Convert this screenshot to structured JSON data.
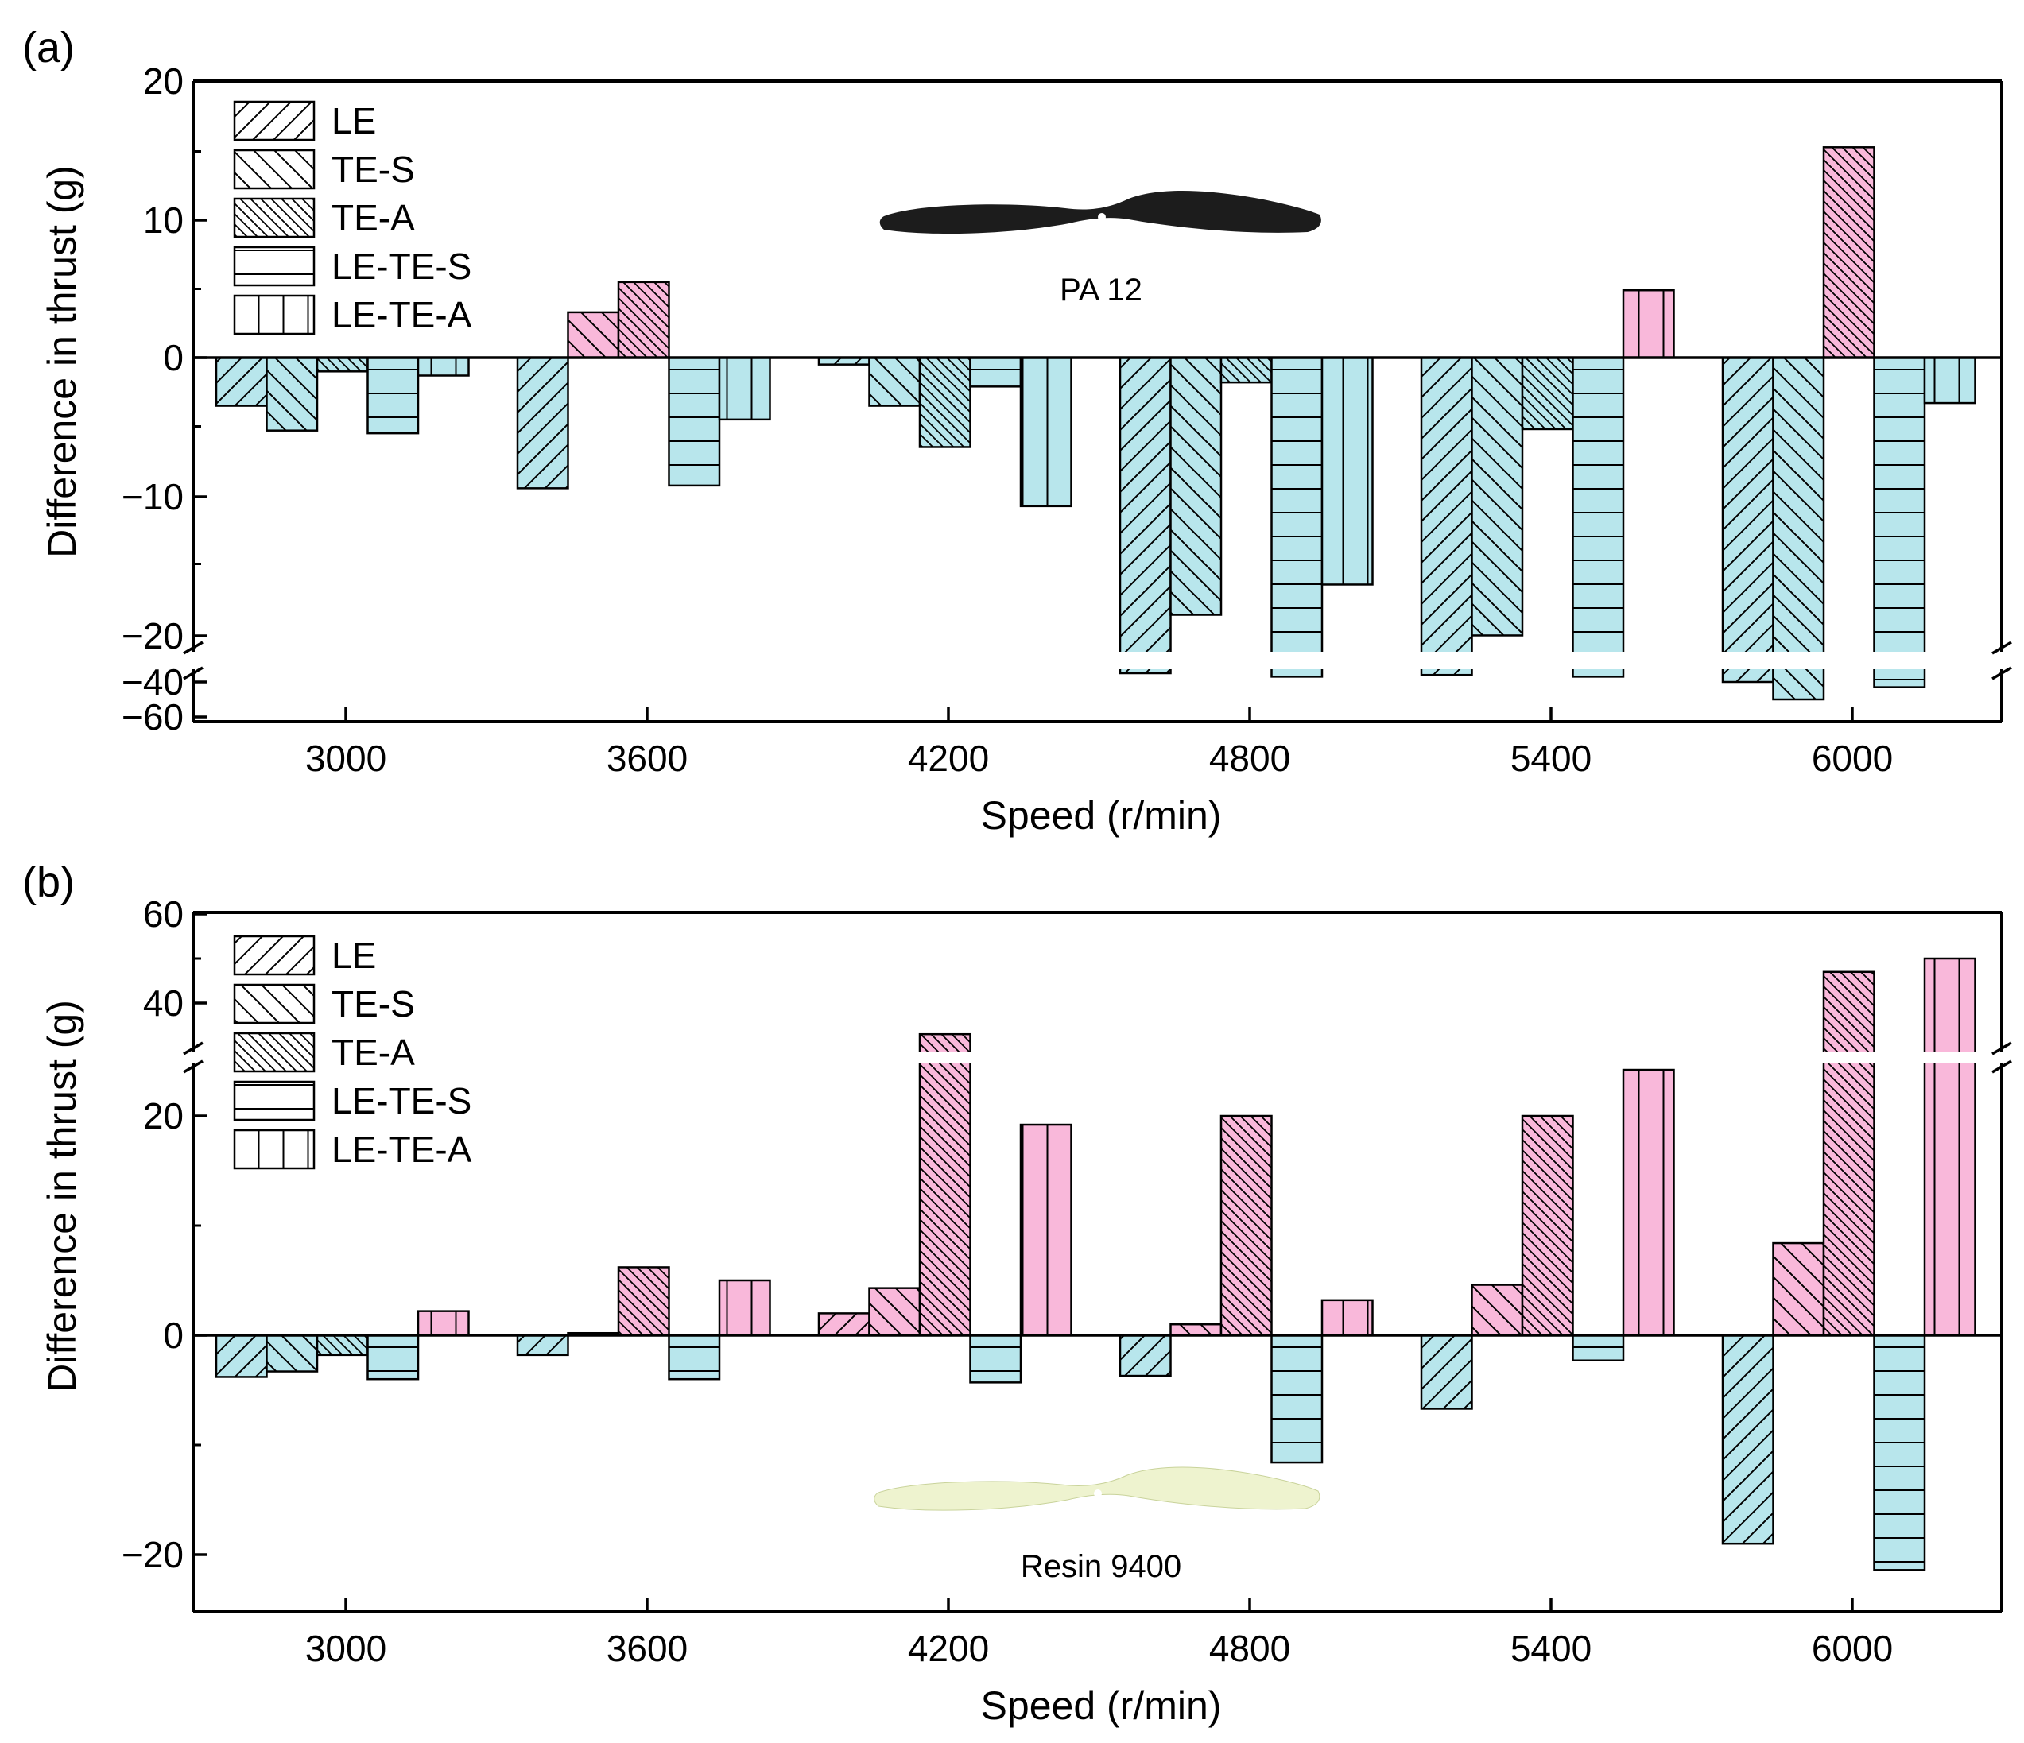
{
  "figure": {
    "panels": [
      {
        "id": "a",
        "panel_label": "(a)",
        "material_label": "PA 12",
        "material_color": "#1c1c1c"
      },
      {
        "id": "b",
        "panel_label": "(b)",
        "material_label": "Resin 9400",
        "material_color": "#eef3cf"
      }
    ]
  },
  "chart_data": [
    {
      "type": "bar",
      "panel": "(a)",
      "title": "",
      "xlabel": "Speed (r/min)",
      "ylabel": "Difference in thrust (g)",
      "categories": [
        "3000",
        "3600",
        "4200",
        "4800",
        "5400",
        "6000"
      ],
      "y_axis_break": {
        "lower_segment": [
          -60,
          -30
        ],
        "upper_segment": [
          -20,
          20
        ]
      },
      "ylim": [
        -60,
        20
      ],
      "yticks": [
        "20",
        "10",
        "0",
        "−10",
        "−20",
        "−40",
        "−60"
      ],
      "ytick_values": [
        20,
        10,
        0,
        -10,
        -20,
        -40,
        -60
      ],
      "legend": {
        "position": "top-left",
        "entries": [
          "LE",
          "TE-S",
          "TE-A",
          "LE-TE-S",
          "LE-TE-A"
        ]
      },
      "series": [
        {
          "name": "LE",
          "hatch": "forward-diagonal",
          "values": [
            -3.5,
            -9.5,
            -0.5,
            -35,
            -36,
            -40
          ]
        },
        {
          "name": "TE-S",
          "hatch": "back-diagonal",
          "values": [
            -5.3,
            3.3,
            -3.5,
            -18.7,
            -20.2,
            -50
          ]
        },
        {
          "name": "TE-A",
          "hatch": "dense-back-diagonal",
          "values": [
            -1.0,
            5.5,
            -6.5,
            -1.8,
            -5.2,
            15.3
          ]
        },
        {
          "name": "LE-TE-S",
          "hatch": "horizontal",
          "values": [
            -5.5,
            -9.3,
            -2.1,
            -37,
            -37,
            -43
          ]
        },
        {
          "name": "LE-TE-A",
          "hatch": "vertical",
          "values": [
            -1.3,
            -4.5,
            -10.8,
            -16.5,
            4.9,
            -3.3
          ]
        }
      ],
      "colors": {
        "positive": "#f9b8da",
        "negative": "#b8e6ec"
      }
    },
    {
      "type": "bar",
      "panel": "(b)",
      "title": "",
      "xlabel": "Speed (r/min)",
      "ylabel": "Difference in thrust (g)",
      "categories": [
        "3000",
        "3600",
        "4200",
        "4800",
        "5400",
        "6000"
      ],
      "y_axis_break": {
        "lower_segment": [
          -25,
          29
        ],
        "upper_segment": [
          30,
          60
        ]
      },
      "ylim": [
        -25,
        60
      ],
      "yticks": [
        "60",
        "40",
        "20",
        "0",
        "−20"
      ],
      "ytick_values": [
        60,
        40,
        20,
        0,
        -20
      ],
      "legend": {
        "position": "top-left",
        "entries": [
          "LE",
          "TE-S",
          "TE-A",
          "LE-TE-S",
          "LE-TE-A"
        ]
      },
      "series": [
        {
          "name": "LE",
          "hatch": "forward-diagonal",
          "values": [
            -3.8,
            -1.8,
            2.0,
            -3.7,
            -6.7,
            -19.0
          ]
        },
        {
          "name": "TE-S",
          "hatch": "back-diagonal",
          "values": [
            -3.3,
            0.2,
            4.3,
            1.0,
            4.6,
            8.4
          ]
        },
        {
          "name": "TE-A",
          "hatch": "dense-back-diagonal",
          "values": [
            -1.8,
            6.2,
            33,
            20,
            20,
            47
          ]
        },
        {
          "name": "LE-TE-S",
          "hatch": "horizontal",
          "values": [
            -4.0,
            -4.0,
            -4.3,
            -11.6,
            -2.3,
            -21.4
          ]
        },
        {
          "name": "LE-TE-A",
          "hatch": "vertical",
          "values": [
            2.2,
            5.0,
            19.2,
            3.2,
            24.2,
            50
          ]
        }
      ],
      "colors": {
        "positive": "#f9b8da",
        "negative": "#b8e6ec"
      }
    }
  ]
}
